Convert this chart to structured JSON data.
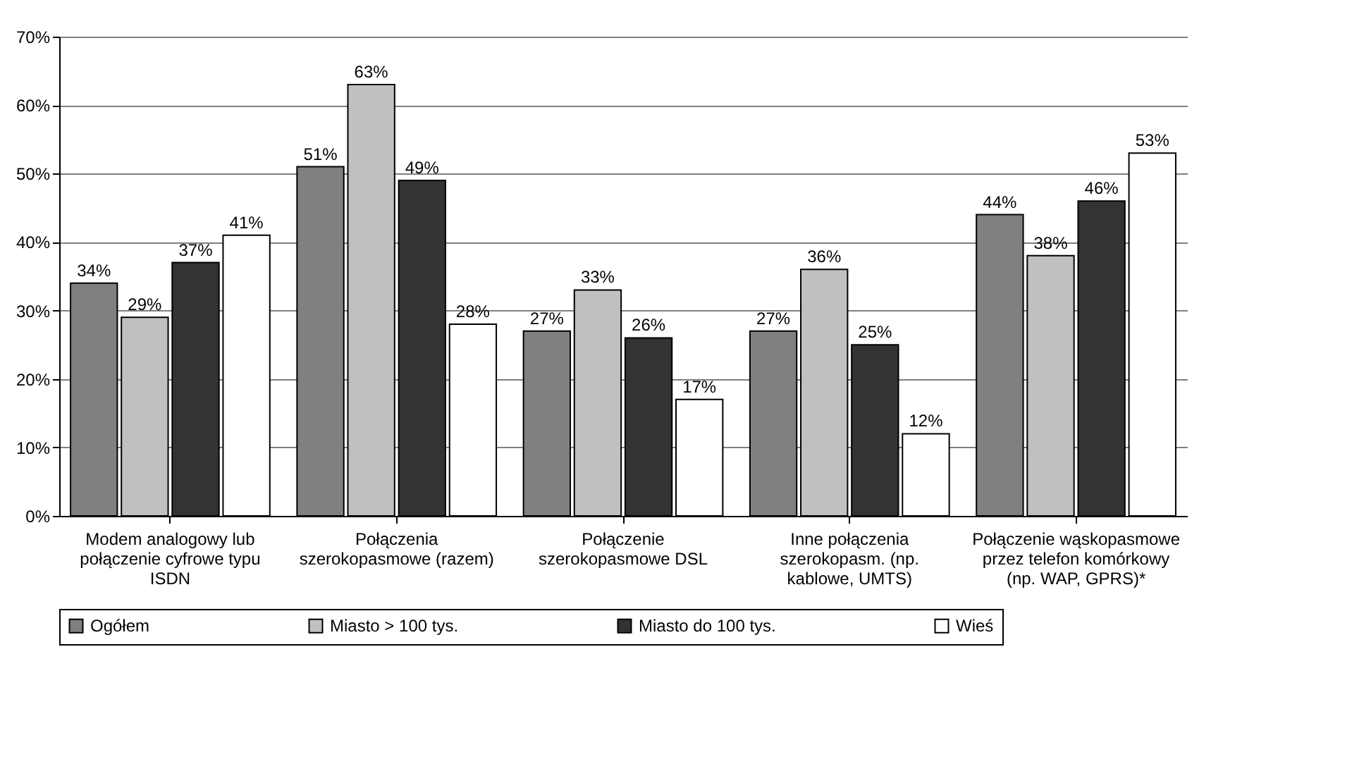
{
  "chart_data": {
    "type": "bar",
    "categories": [
      "Modem analogowy lub połączenie cyfrowe typu ISDN",
      "Połączenia szerokopasmowe (razem)",
      "Połączenie szerokopasmowe DSL",
      "Inne połączenia szerokopasm. (np. kablowe, UMTS)",
      "Połączenie wąskopasmowe przez telefon komórkowy (np. WAP, GPRS)*"
    ],
    "series": [
      {
        "name": "Ogółem",
        "color": "#808080",
        "values": [
          34,
          51,
          27,
          27,
          44
        ],
        "value_labels": [
          "34%",
          "51%",
          "27%",
          "27%",
          "44%"
        ]
      },
      {
        "name": "Miasto > 100 tys.",
        "color": "#c0c0c0",
        "values": [
          29,
          63,
          33,
          36,
          38
        ],
        "value_labels": [
          "29%",
          "63%",
          "33%",
          "36%",
          "38%"
        ]
      },
      {
        "name": "Miasto do 100 tys.",
        "color": "#333333",
        "values": [
          37,
          49,
          26,
          25,
          46
        ],
        "value_labels": [
          "37%",
          "49%",
          "26%",
          "25%",
          "46%"
        ]
      },
      {
        "name": "Wieś",
        "color": "#ffffff",
        "values": [
          41,
          28,
          17,
          12,
          53
        ],
        "value_labels": [
          "41%",
          "28%",
          "17%",
          "12%",
          "53%"
        ]
      }
    ],
    "ylim": [
      0,
      70
    ],
    "yticks": [
      {
        "value": 0,
        "label": "0%"
      },
      {
        "value": 10,
        "label": "10%"
      },
      {
        "value": 20,
        "label": "20%"
      },
      {
        "value": 30,
        "label": "30%"
      },
      {
        "value": 40,
        "label": "40%"
      },
      {
        "value": 50,
        "label": "50%"
      },
      {
        "value": 60,
        "label": "60%"
      },
      {
        "value": 70,
        "label": "70%"
      }
    ],
    "grid": "y",
    "legend": "bottom"
  }
}
